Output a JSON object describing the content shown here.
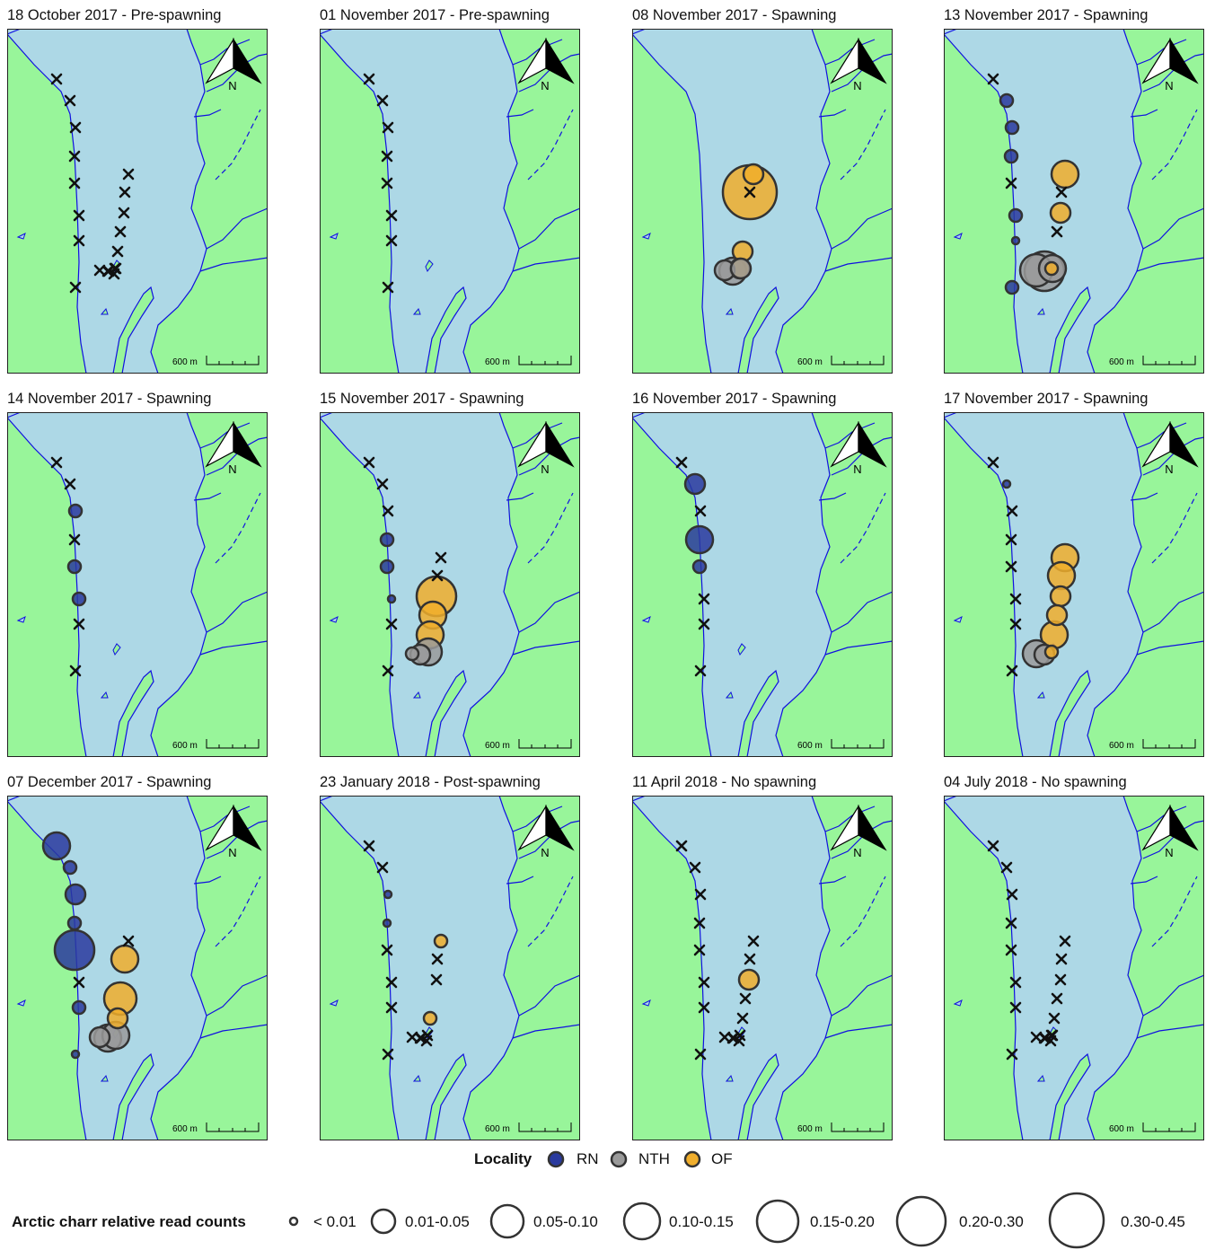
{
  "scale_label": "600 m",
  "north_label": "N",
  "colors": {
    "land": "#98f59a",
    "lake": "#add8e6",
    "river": "#1010e0",
    "RN": "#2a3a9e",
    "NTH": "#9a9a9a",
    "OF": "#f0ae2c",
    "cross": "#111111"
  },
  "panels": [
    {
      "title": "18 October 2017 - Pre-spawning",
      "crosses": [
        0,
        1,
        2,
        3,
        4,
        5,
        6,
        7,
        8,
        9,
        10,
        11,
        12,
        13,
        14,
        15,
        16,
        17,
        18
      ],
      "circles": []
    },
    {
      "title": "01 November 2017 - Pre-spawning",
      "crosses": [
        0,
        1,
        2,
        3,
        4,
        5,
        6,
        7
      ],
      "circles": []
    },
    {
      "title": "08 November 2017 - Spawning",
      "crosses": [
        9
      ],
      "circles": [
        {
          "site": 8,
          "locality": "OF",
          "size_class": "0.05-0.10"
        },
        {
          "site": 9,
          "locality": "OF",
          "size_class": "0.30-0.45"
        },
        {
          "site": 12,
          "locality": "OF",
          "size_class": "0.05-0.10"
        },
        {
          "site": 13,
          "locality": "OF",
          "size_class": "0.05-0.10"
        },
        {
          "site": 16,
          "locality": "NTH",
          "size_class": "0.05-0.10"
        },
        {
          "site": 17,
          "locality": "NTH",
          "size_class": "0.10-0.15"
        },
        {
          "site": 18,
          "locality": "NTH",
          "size_class": "0.05-0.10"
        }
      ]
    },
    {
      "title": "13 November 2017 - Spawning",
      "crosses": [
        0,
        4,
        9,
        11
      ],
      "circles": [
        {
          "site": 1,
          "locality": "RN",
          "size_class": "0.01-0.05"
        },
        {
          "site": 2,
          "locality": "RN",
          "size_class": "0.01-0.05"
        },
        {
          "site": 3,
          "locality": "RN",
          "size_class": "0.01-0.05"
        },
        {
          "site": 5,
          "locality": "RN",
          "size_class": "0.01-0.05"
        },
        {
          "site": 6,
          "locality": "RN",
          "size_class": "< 0.01"
        },
        {
          "site": 7,
          "locality": "RN",
          "size_class": "0.01-0.05"
        },
        {
          "site": 8,
          "locality": "OF",
          "size_class": "0.10-0.15"
        },
        {
          "site": 10,
          "locality": "OF",
          "size_class": "0.05-0.10"
        },
        {
          "site": 13,
          "locality": "OF",
          "size_class": "0.01-0.05"
        },
        {
          "site": 16,
          "locality": "NTH",
          "size_class": "0.15-0.20"
        },
        {
          "site": 17,
          "locality": "NTH",
          "size_class": "0.20-0.30"
        },
        {
          "site": 18,
          "locality": "NTH",
          "size_class": "0.10-0.15"
        }
      ]
    },
    {
      "title": "14 November 2017 - Spawning",
      "crosses": [
        0,
        1,
        3,
        6,
        7
      ],
      "circles": [
        {
          "site": 2,
          "locality": "RN",
          "size_class": "0.01-0.05"
        },
        {
          "site": 4,
          "locality": "RN",
          "size_class": "0.01-0.05"
        },
        {
          "site": 5,
          "locality": "RN",
          "size_class": "0.01-0.05"
        }
      ]
    },
    {
      "title": "15 November 2017 - Spawning",
      "crosses": [
        0,
        1,
        2,
        6,
        7,
        8,
        9
      ],
      "circles": [
        {
          "site": 3,
          "locality": "RN",
          "size_class": "0.01-0.05"
        },
        {
          "site": 4,
          "locality": "RN",
          "size_class": "0.01-0.05"
        },
        {
          "site": 5,
          "locality": "RN",
          "size_class": "< 0.01"
        },
        {
          "site": 10,
          "locality": "OF",
          "size_class": "0.20-0.30"
        },
        {
          "site": 11,
          "locality": "OF",
          "size_class": "0.10-0.15"
        },
        {
          "site": 12,
          "locality": "OF",
          "size_class": "0.10-0.15"
        },
        {
          "site": 16,
          "locality": "NTH",
          "size_class": "0.01-0.05"
        },
        {
          "site": 17,
          "locality": "NTH",
          "size_class": "0.05-0.10"
        },
        {
          "site": 18,
          "locality": "NTH",
          "size_class": "0.10-0.15"
        }
      ]
    },
    {
      "title": "16 November 2017 - Spawning",
      "crosses": [
        0,
        2,
        5,
        6,
        7
      ],
      "circles": [
        {
          "site": 1,
          "locality": "RN",
          "size_class": "0.05-0.10"
        },
        {
          "site": 3,
          "locality": "RN",
          "size_class": "0.10-0.15"
        },
        {
          "site": 4,
          "locality": "RN",
          "size_class": "0.01-0.05"
        }
      ]
    },
    {
      "title": "17 November 2017 - Spawning",
      "crosses": [
        0,
        2,
        3,
        4,
        5,
        6,
        7
      ],
      "circles": [
        {
          "site": 1,
          "locality": "RN",
          "size_class": "< 0.01"
        },
        {
          "site": 8,
          "locality": "OF",
          "size_class": "0.10-0.15"
        },
        {
          "site": 9,
          "locality": "OF",
          "size_class": "0.10-0.15"
        },
        {
          "site": 10,
          "locality": "OF",
          "size_class": "0.05-0.10"
        },
        {
          "site": 11,
          "locality": "OF",
          "size_class": "0.05-0.10"
        },
        {
          "site": 12,
          "locality": "OF",
          "size_class": "0.10-0.15"
        },
        {
          "site": 13,
          "locality": "OF",
          "size_class": "0.01-0.05"
        },
        {
          "site": 16,
          "locality": "NTH",
          "size_class": "0.10-0.15"
        },
        {
          "site": 17,
          "locality": "NTH",
          "size_class": "0.05-0.10"
        }
      ]
    },
    {
      "title": "07 December 2017 - Spawning",
      "crosses": [
        8,
        5
      ],
      "circles": [
        {
          "site": 0,
          "locality": "RN",
          "size_class": "0.10-0.15"
        },
        {
          "site": 1,
          "locality": "RN",
          "size_class": "0.01-0.05"
        },
        {
          "site": 2,
          "locality": "RN",
          "size_class": "0.05-0.10"
        },
        {
          "site": 3,
          "locality": "RN",
          "size_class": "0.01-0.05"
        },
        {
          "site": 4,
          "locality": "RN",
          "size_class": "0.20-0.30"
        },
        {
          "site": 6,
          "locality": "RN",
          "size_class": "0.01-0.05"
        },
        {
          "site": 7,
          "locality": "RN",
          "size_class": "< 0.01"
        },
        {
          "site": 9,
          "locality": "OF",
          "size_class": "0.10-0.15"
        },
        {
          "site": 11,
          "locality": "OF",
          "size_class": "0.15-0.20"
        },
        {
          "site": 12,
          "locality": "OF",
          "size_class": "0.05-0.10"
        },
        {
          "site": 16,
          "locality": "NTH",
          "size_class": "0.05-0.10"
        },
        {
          "site": 17,
          "locality": "NTH",
          "size_class": "0.10-0.15"
        },
        {
          "site": 18,
          "locality": "NTH",
          "size_class": "0.10-0.15"
        }
      ]
    },
    {
      "title": "23 January 2018 - Post-spawning",
      "crosses": [
        0,
        1,
        4,
        5,
        6,
        7,
        9,
        10,
        13,
        14,
        15,
        16,
        17
      ],
      "circles": [
        {
          "site": 2,
          "locality": "RN",
          "size_class": "< 0.01"
        },
        {
          "site": 3,
          "locality": "RN",
          "size_class": "< 0.01"
        },
        {
          "site": 8,
          "locality": "OF",
          "size_class": "0.01-0.05"
        },
        {
          "site": 12,
          "locality": "OF",
          "size_class": "0.01-0.05"
        }
      ]
    },
    {
      "title": "11 April 2018 - No spawning",
      "crosses": [
        0,
        1,
        2,
        3,
        4,
        5,
        6,
        7,
        8,
        9,
        11,
        12,
        13,
        14,
        15,
        16,
        17
      ],
      "circles": [
        {
          "site": 10,
          "locality": "OF",
          "size_class": "0.05-0.10"
        }
      ]
    },
    {
      "title": "04 July 2018 - No spawning",
      "crosses": [
        0,
        1,
        2,
        3,
        4,
        5,
        6,
        7,
        8,
        9,
        10,
        11,
        12,
        13,
        14,
        15,
        16,
        17,
        18
      ],
      "circles": []
    }
  ],
  "legend": {
    "locality_title": "Locality",
    "localities": [
      {
        "key": "RN",
        "label": "RN"
      },
      {
        "key": "NTH",
        "label": "NTH"
      },
      {
        "key": "OF",
        "label": "OF"
      }
    ],
    "size_title": "Arctic charr  relative read counts",
    "size_classes": [
      "< 0.01",
      "0.01-0.05",
      "0.05-0.10",
      "0.10-0.15",
      "0.15-0.20",
      "0.20-0.30",
      "0.30-0.45"
    ]
  }
}
